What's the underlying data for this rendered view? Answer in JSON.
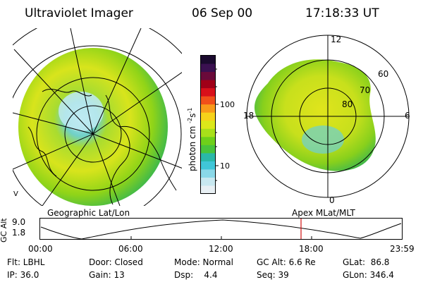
{
  "header": {
    "instrument": "Ultraviolet Imager",
    "date": "06 Sep 00",
    "time": "17:18:33 UT"
  },
  "geo_map": {
    "label": "Geographic Lat/Lon",
    "corner_mark": "V"
  },
  "color_bar": {
    "unit_label": "photon cm",
    "unit_sup1": "-2",
    "unit_mid": "s",
    "unit_sup2": "-1",
    "ticks": [
      "100",
      "10"
    ],
    "colors": [
      "#1a0a2e",
      "#3a1050",
      "#6a0a3a",
      "#a00018",
      "#d8101a",
      "#f0501a",
      "#f89a1a",
      "#f6d21a",
      "#dce81a",
      "#a8e01a",
      "#6ed01a",
      "#48c43c",
      "#2ab8a8",
      "#40c6d8",
      "#8ad8e8",
      "#c8e8f0",
      "#e8f0f4"
    ]
  },
  "polar_map": {
    "label": "Apex MLat/MLT",
    "mlt_labels": {
      "top": "12",
      "left": "18",
      "right": "6",
      "bottom": "0"
    },
    "lat_labels": [
      "60",
      "70",
      "80"
    ]
  },
  "altitude_plot": {
    "axis_label": "GC Alt",
    "y_ticks": [
      "9.0",
      "1.8"
    ],
    "x_ticks": [
      "00:00",
      "06:00",
      "12:00",
      "18:00",
      "23:59"
    ],
    "marker_color": "#d01010"
  },
  "info": {
    "flt": "Flt: LBHL",
    "door": "Door: Closed",
    "mode": "Mode: Normal",
    "gc_alt": "GC Alt: 6.6 Re",
    "glat": "GLat:  86.8",
    "ip": "IP: 36.0",
    "gain": "Gain: 13",
    "dsp": "Dsp:    4.4",
    "seq": "Seq: 39",
    "glon": "GLon: 346.4"
  }
}
